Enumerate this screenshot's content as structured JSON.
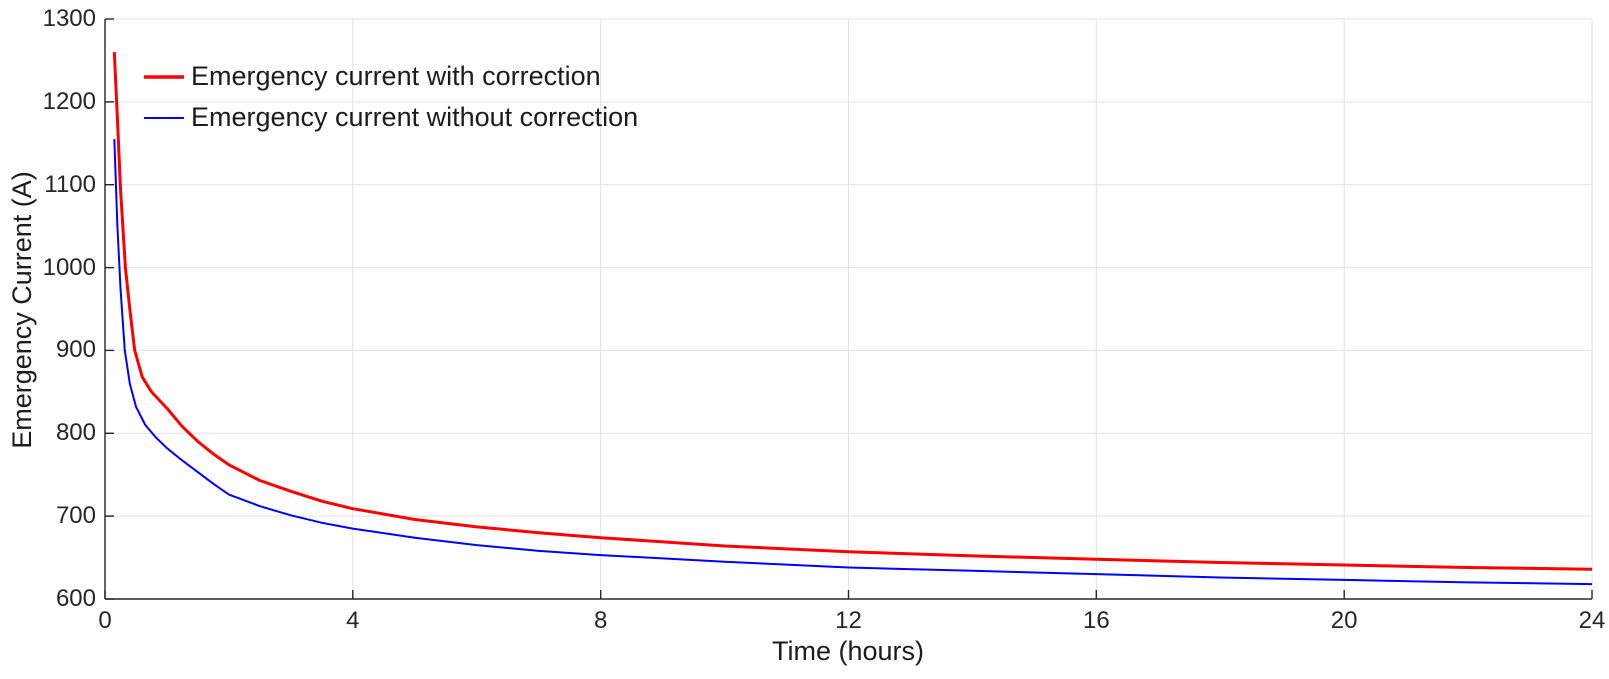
{
  "chart_data": {
    "type": "line",
    "title": "",
    "xlabel": "Time (hours)",
    "ylabel": "Emergency Current (A)",
    "xlim": [
      0,
      24
    ],
    "ylim": [
      600,
      1300
    ],
    "x_ticks": [
      "0",
      "4",
      "8",
      "12",
      "16",
      "20",
      "24"
    ],
    "x_tick_values": [
      0,
      4,
      8,
      12,
      16,
      20,
      24
    ],
    "y_ticks": [
      "600",
      "700",
      "800",
      "900",
      "1000",
      "1100",
      "1200",
      "1300"
    ],
    "y_tick_values": [
      600,
      700,
      800,
      900,
      1000,
      1100,
      1200,
      1300
    ],
    "grid": true,
    "box": false,
    "legend_position": "top-left-inside",
    "series": [
      {
        "name": "Emergency current with correction",
        "color": "#ff0000",
        "line_width": 3,
        "points": [
          [
            0.15,
            1260
          ],
          [
            0.2,
            1180
          ],
          [
            0.25,
            1095
          ],
          [
            0.33,
            1000
          ],
          [
            0.4,
            950
          ],
          [
            0.48,
            900
          ],
          [
            0.6,
            868
          ],
          [
            0.75,
            850
          ],
          [
            1,
            830
          ],
          [
            1.25,
            808
          ],
          [
            1.5,
            790
          ],
          [
            1.75,
            775
          ],
          [
            2,
            762
          ],
          [
            2.5,
            743
          ],
          [
            3,
            730
          ],
          [
            3.5,
            718
          ],
          [
            4,
            709
          ],
          [
            5,
            696
          ],
          [
            6,
            687
          ],
          [
            7,
            680
          ],
          [
            8,
            674
          ],
          [
            10,
            664
          ],
          [
            12,
            657
          ],
          [
            14,
            652
          ],
          [
            16,
            648
          ],
          [
            18,
            644
          ],
          [
            20,
            641
          ],
          [
            22,
            638
          ],
          [
            24,
            636
          ]
        ]
      },
      {
        "name": "Emergency current without correction",
        "color": "#0000ff",
        "line_width": 2,
        "points": [
          [
            0.15,
            1155
          ],
          [
            0.2,
            1050
          ],
          [
            0.25,
            975
          ],
          [
            0.32,
            900
          ],
          [
            0.4,
            860
          ],
          [
            0.5,
            832
          ],
          [
            0.65,
            810
          ],
          [
            0.82,
            795
          ],
          [
            1,
            782
          ],
          [
            1.25,
            767
          ],
          [
            1.5,
            753
          ],
          [
            1.75,
            739
          ],
          [
            2,
            726
          ],
          [
            2.5,
            712
          ],
          [
            3,
            701
          ],
          [
            3.5,
            692
          ],
          [
            4,
            685
          ],
          [
            5,
            674
          ],
          [
            6,
            665
          ],
          [
            7,
            658
          ],
          [
            8,
            653
          ],
          [
            10,
            645
          ],
          [
            12,
            638
          ],
          [
            14,
            634
          ],
          [
            16,
            630
          ],
          [
            18,
            626
          ],
          [
            20,
            623
          ],
          [
            22,
            620
          ],
          [
            24,
            618
          ]
        ]
      }
    ],
    "colors": {
      "grid": "#e2e2e2",
      "axis": "#262626",
      "tick_text": "#262626",
      "label_text": "#1c1c1c",
      "background": "#ffffff"
    }
  }
}
